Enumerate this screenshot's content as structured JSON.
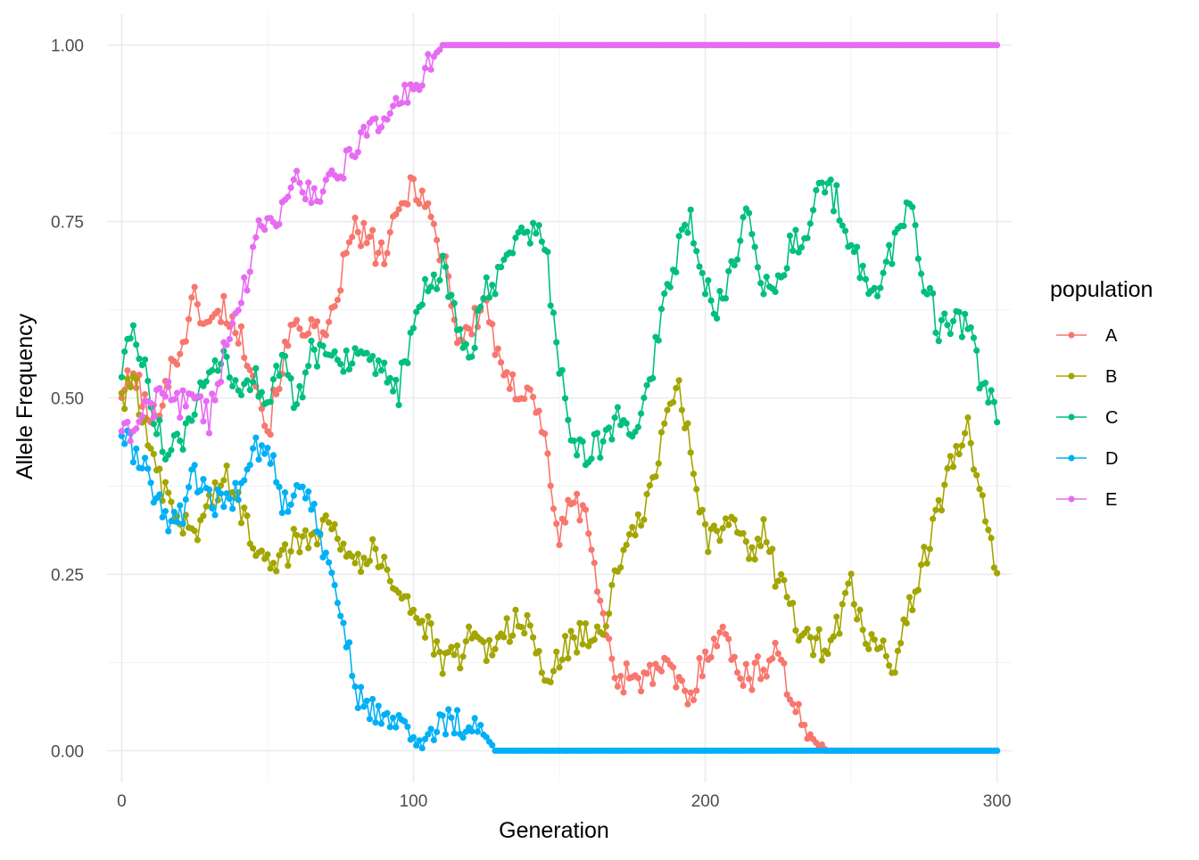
{
  "chart_data": {
    "type": "line",
    "title": "",
    "xlabel": "Generation",
    "ylabel": "Allele Frequency",
    "xlim": [
      -5,
      305
    ],
    "ylim": [
      -0.045,
      1.045
    ],
    "x_ticks": [
      0,
      100,
      200,
      300
    ],
    "x_tick_labels": [
      "0",
      "100",
      "200",
      "300"
    ],
    "x_minor_ticks": [
      50,
      150,
      250
    ],
    "y_ticks": [
      0,
      0.25,
      0.5,
      0.75,
      1.0
    ],
    "y_tick_labels": [
      "0.00",
      "0.25",
      "0.50",
      "0.75",
      "1.00"
    ],
    "y_minor_ticks": [
      0.125,
      0.375,
      0.625,
      0.875
    ],
    "grid": true,
    "legend": {
      "title": "population",
      "position": "right"
    },
    "x_start": 0,
    "x_step": 1,
    "series": [
      {
        "name": "A",
        "color": "#F8766D",
        "keyframes": [
          [
            0,
            0.51
          ],
          [
            5,
            0.53
          ],
          [
            10,
            0.46
          ],
          [
            15,
            0.52
          ],
          [
            20,
            0.57
          ],
          [
            25,
            0.64
          ],
          [
            30,
            0.6
          ],
          [
            35,
            0.63
          ],
          [
            40,
            0.59
          ],
          [
            45,
            0.55
          ],
          [
            48,
            0.49
          ],
          [
            50,
            0.45
          ],
          [
            55,
            0.55
          ],
          [
            60,
            0.61
          ],
          [
            65,
            0.6
          ],
          [
            70,
            0.57
          ],
          [
            75,
            0.67
          ],
          [
            80,
            0.74
          ],
          [
            85,
            0.72
          ],
          [
            90,
            0.7
          ],
          [
            95,
            0.76
          ],
          [
            100,
            0.81
          ],
          [
            105,
            0.77
          ],
          [
            108,
            0.72
          ],
          [
            112,
            0.68
          ],
          [
            115,
            0.58
          ],
          [
            120,
            0.6
          ],
          [
            125,
            0.64
          ],
          [
            130,
            0.53
          ],
          [
            135,
            0.51
          ],
          [
            140,
            0.52
          ],
          [
            145,
            0.44
          ],
          [
            150,
            0.3
          ],
          [
            155,
            0.36
          ],
          [
            160,
            0.32
          ],
          [
            165,
            0.18
          ],
          [
            170,
            0.1
          ],
          [
            175,
            0.11
          ],
          [
            180,
            0.1
          ],
          [
            185,
            0.12
          ],
          [
            190,
            0.1
          ],
          [
            195,
            0.07
          ],
          [
            200,
            0.14
          ],
          [
            205,
            0.17
          ],
          [
            210,
            0.13
          ],
          [
            215,
            0.1
          ],
          [
            220,
            0.12
          ],
          [
            225,
            0.15
          ],
          [
            230,
            0.06
          ],
          [
            235,
            0.02
          ],
          [
            240,
            0.01
          ],
          [
            242,
            0.0
          ],
          [
            300,
            0.0
          ]
        ]
      },
      {
        "name": "B",
        "color": "#A3A500",
        "keyframes": [
          [
            0,
            0.5
          ],
          [
            5,
            0.52
          ],
          [
            10,
            0.41
          ],
          [
            15,
            0.36
          ],
          [
            20,
            0.32
          ],
          [
            25,
            0.31
          ],
          [
            30,
            0.35
          ],
          [
            35,
            0.39
          ],
          [
            40,
            0.35
          ],
          [
            45,
            0.3
          ],
          [
            50,
            0.28
          ],
          [
            55,
            0.27
          ],
          [
            60,
            0.3
          ],
          [
            65,
            0.29
          ],
          [
            70,
            0.35
          ],
          [
            75,
            0.3
          ],
          [
            80,
            0.27
          ],
          [
            85,
            0.28
          ],
          [
            90,
            0.27
          ],
          [
            95,
            0.23
          ],
          [
            100,
            0.2
          ],
          [
            105,
            0.17
          ],
          [
            110,
            0.12
          ],
          [
            115,
            0.13
          ],
          [
            120,
            0.17
          ],
          [
            125,
            0.14
          ],
          [
            130,
            0.17
          ],
          [
            135,
            0.18
          ],
          [
            140,
            0.17
          ],
          [
            145,
            0.1
          ],
          [
            150,
            0.13
          ],
          [
            155,
            0.16
          ],
          [
            160,
            0.16
          ],
          [
            165,
            0.18
          ],
          [
            170,
            0.25
          ],
          [
            175,
            0.3
          ],
          [
            180,
            0.35
          ],
          [
            185,
            0.43
          ],
          [
            190,
            0.53
          ],
          [
            195,
            0.43
          ],
          [
            200,
            0.3
          ],
          [
            205,
            0.31
          ],
          [
            210,
            0.31
          ],
          [
            215,
            0.28
          ],
          [
            220,
            0.31
          ],
          [
            225,
            0.24
          ],
          [
            230,
            0.19
          ],
          [
            235,
            0.16
          ],
          [
            240,
            0.15
          ],
          [
            245,
            0.17
          ],
          [
            250,
            0.23
          ],
          [
            255,
            0.15
          ],
          [
            260,
            0.14
          ],
          [
            265,
            0.13
          ],
          [
            270,
            0.2
          ],
          [
            275,
            0.27
          ],
          [
            280,
            0.34
          ],
          [
            285,
            0.41
          ],
          [
            290,
            0.46
          ],
          [
            295,
            0.36
          ],
          [
            300,
            0.24
          ]
        ]
      },
      {
        "name": "C",
        "color": "#00BF7D",
        "keyframes": [
          [
            0,
            0.55
          ],
          [
            5,
            0.59
          ],
          [
            10,
            0.5
          ],
          [
            15,
            0.42
          ],
          [
            20,
            0.43
          ],
          [
            25,
            0.49
          ],
          [
            30,
            0.52
          ],
          [
            35,
            0.55
          ],
          [
            40,
            0.51
          ],
          [
            45,
            0.53
          ],
          [
            50,
            0.5
          ],
          [
            55,
            0.56
          ],
          [
            60,
            0.48
          ],
          [
            65,
            0.56
          ],
          [
            70,
            0.57
          ],
          [
            75,
            0.56
          ],
          [
            80,
            0.55
          ],
          [
            85,
            0.54
          ],
          [
            90,
            0.53
          ],
          [
            95,
            0.51
          ],
          [
            100,
            0.6
          ],
          [
            105,
            0.66
          ],
          [
            110,
            0.68
          ],
          [
            115,
            0.6
          ],
          [
            120,
            0.57
          ],
          [
            125,
            0.65
          ],
          [
            130,
            0.67
          ],
          [
            135,
            0.72
          ],
          [
            140,
            0.74
          ],
          [
            145,
            0.72
          ],
          [
            150,
            0.55
          ],
          [
            155,
            0.43
          ],
          [
            160,
            0.42
          ],
          [
            165,
            0.44
          ],
          [
            170,
            0.47
          ],
          [
            175,
            0.45
          ],
          [
            180,
            0.5
          ],
          [
            185,
            0.62
          ],
          [
            190,
            0.7
          ],
          [
            195,
            0.75
          ],
          [
            200,
            0.65
          ],
          [
            205,
            0.63
          ],
          [
            210,
            0.7
          ],
          [
            215,
            0.78
          ],
          [
            220,
            0.65
          ],
          [
            225,
            0.66
          ],
          [
            230,
            0.72
          ],
          [
            235,
            0.74
          ],
          [
            240,
            0.8
          ],
          [
            245,
            0.78
          ],
          [
            250,
            0.71
          ],
          [
            255,
            0.67
          ],
          [
            260,
            0.66
          ],
          [
            265,
            0.72
          ],
          [
            270,
            0.78
          ],
          [
            275,
            0.67
          ],
          [
            280,
            0.6
          ],
          [
            285,
            0.61
          ],
          [
            290,
            0.6
          ],
          [
            295,
            0.51
          ],
          [
            300,
            0.48
          ]
        ]
      },
      {
        "name": "D",
        "color": "#00B0F6",
        "keyframes": [
          [
            0,
            0.45
          ],
          [
            5,
            0.42
          ],
          [
            10,
            0.38
          ],
          [
            15,
            0.33
          ],
          [
            20,
            0.33
          ],
          [
            25,
            0.39
          ],
          [
            30,
            0.35
          ],
          [
            35,
            0.35
          ],
          [
            40,
            0.37
          ],
          [
            45,
            0.43
          ],
          [
            50,
            0.44
          ],
          [
            55,
            0.35
          ],
          [
            60,
            0.36
          ],
          [
            65,
            0.36
          ],
          [
            70,
            0.28
          ],
          [
            75,
            0.2
          ],
          [
            80,
            0.09
          ],
          [
            85,
            0.05
          ],
          [
            90,
            0.06
          ],
          [
            95,
            0.04
          ],
          [
            100,
            0.02
          ],
          [
            103,
            0.005
          ],
          [
            105,
            0.02
          ],
          [
            110,
            0.04
          ],
          [
            115,
            0.04
          ],
          [
            120,
            0.04
          ],
          [
            125,
            0.015
          ],
          [
            128,
            0.0
          ],
          [
            300,
            0.0
          ]
        ]
      },
      {
        "name": "E",
        "color": "#E76BF3",
        "keyframes": [
          [
            0,
            0.44
          ],
          [
            5,
            0.47
          ],
          [
            10,
            0.48
          ],
          [
            15,
            0.52
          ],
          [
            20,
            0.49
          ],
          [
            25,
            0.5
          ],
          [
            30,
            0.47
          ],
          [
            35,
            0.56
          ],
          [
            40,
            0.61
          ],
          [
            45,
            0.71
          ],
          [
            50,
            0.77
          ],
          [
            55,
            0.76
          ],
          [
            60,
            0.8
          ],
          [
            65,
            0.79
          ],
          [
            70,
            0.8
          ],
          [
            75,
            0.82
          ],
          [
            80,
            0.86
          ],
          [
            85,
            0.87
          ],
          [
            90,
            0.89
          ],
          [
            95,
            0.92
          ],
          [
            100,
            0.94
          ],
          [
            105,
            0.97
          ],
          [
            110,
            1.0
          ],
          [
            300,
            1.0
          ]
        ]
      }
    ]
  }
}
